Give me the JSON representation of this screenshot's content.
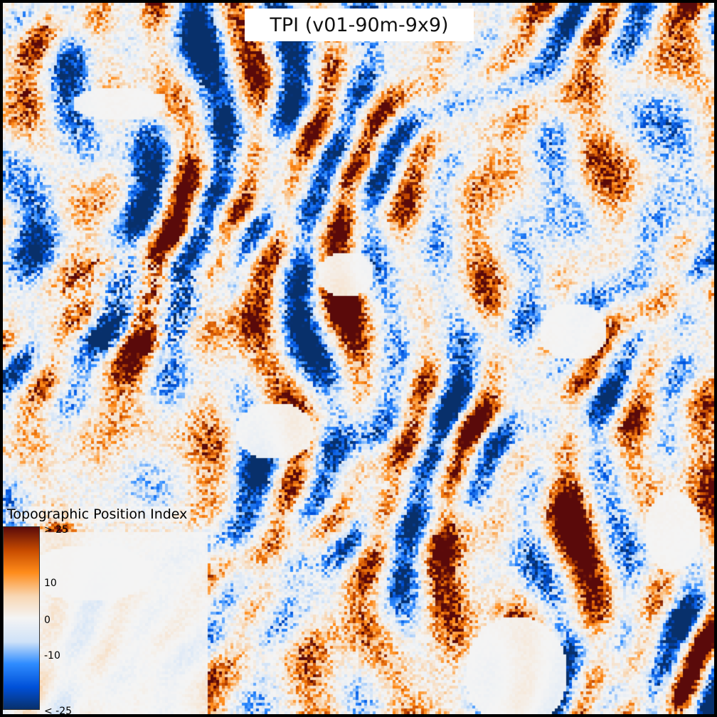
{
  "map": {
    "title": "TPI (v01-90m-9x9)",
    "layer": "topographic-position-index-raster"
  },
  "legend": {
    "title": "Topographic Position Index",
    "ticks": [
      "> 25",
      "10",
      "0",
      "-10",
      "< -25"
    ],
    "tick_values": [
      25,
      10,
      0,
      -10,
      -25
    ],
    "colormap": [
      "#08306b",
      "#0050d8",
      "#2f8cff",
      "#cfe2f8",
      "#f4f4f4",
      "#f8d7b4",
      "#ff8c1a",
      "#c84c00",
      "#5a0a0a"
    ],
    "range": [
      -25,
      25
    ]
  },
  "colors": {
    "background": "#f1f1f1",
    "frame": "#000000",
    "title_box": "#ffffff"
  }
}
